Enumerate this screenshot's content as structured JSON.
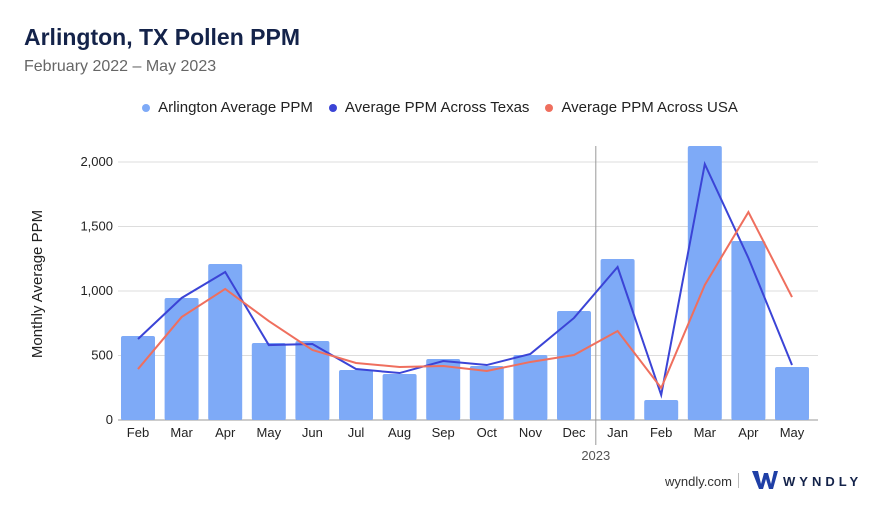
{
  "chart_data": {
    "type": "bar",
    "title": "Arlington, TX Pollen PPM",
    "subtitle": "February 2022 – May 2023",
    "ylabel": "Monthly Average PPM",
    "xlabel": "",
    "ylim": [
      0,
      2000
    ],
    "yticks": [
      0,
      500,
      1000,
      1500,
      2000
    ],
    "ytick_labels": [
      "0",
      "500",
      "1,000",
      "1,500",
      "2,000"
    ],
    "categories": [
      "Feb",
      "Mar",
      "Apr",
      "May",
      "Jun",
      "Jul",
      "Aug",
      "Sep",
      "Oct",
      "Nov",
      "Dec",
      "Jan",
      "Feb",
      "Mar",
      "Apr",
      "May"
    ],
    "year_marker": {
      "label": "2023",
      "before_index": 11
    },
    "legend_position": "top-center",
    "grid": true,
    "series": [
      {
        "name": "Arlington Average PPM",
        "kind": "bar",
        "color": "#7eaaf7",
        "values": [
          651,
          946,
          1209,
          597,
          612,
          388,
          357,
          473,
          419,
          504,
          845,
          1248,
          155,
          2124,
          1388,
          411
        ]
      },
      {
        "name": "Average PPM Across Texas",
        "kind": "line",
        "color": "#3b44d6",
        "values": [
          628,
          946,
          1147,
          581,
          589,
          395,
          364,
          457,
          426,
          512,
          791,
          1186,
          194,
          1984,
          1256,
          426
        ]
      },
      {
        "name": "Average PPM Across USA",
        "kind": "line",
        "color": "#ef6f5e",
        "values": [
          395,
          798,
          1016,
          767,
          543,
          442,
          411,
          419,
          380,
          450,
          504,
          690,
          248,
          1047,
          1612,
          953
        ]
      }
    ]
  },
  "footer": {
    "url": "wyndly.com",
    "brand": "WYNDLY"
  }
}
